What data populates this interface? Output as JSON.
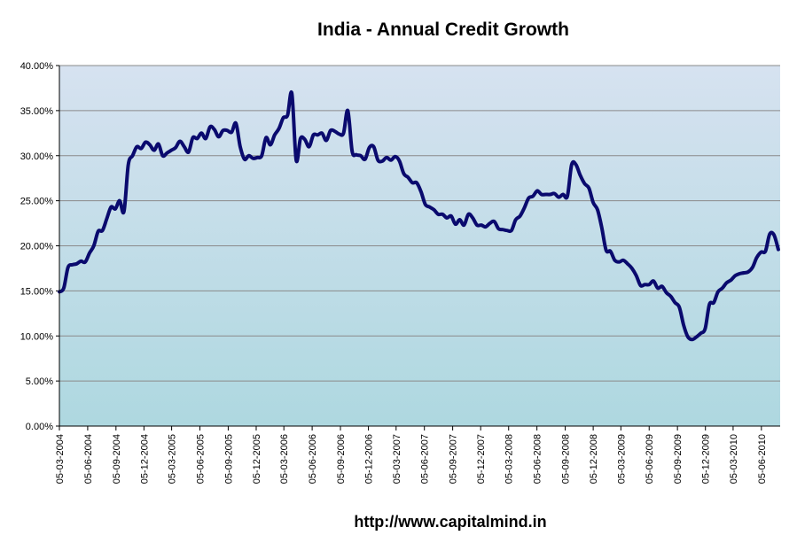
{
  "chart_data": {
    "type": "line",
    "title": "India - Annual Credit Growth",
    "source_caption": "http://www.capitalmind.in",
    "xlabel": "",
    "ylabel": "",
    "ylim": [
      0,
      40
    ],
    "grid": true,
    "legend": "none",
    "colors": {
      "line": "#0a0a6e",
      "plot_bg_top": "#d6e2f0",
      "plot_bg_bottom": "#aed8e0",
      "gridline": "#8a8a8a",
      "axis": "#000000"
    },
    "y_ticks": [
      "0.00%",
      "5.00%",
      "10.00%",
      "15.00%",
      "20.00%",
      "25.00%",
      "30.00%",
      "35.00%",
      "40.00%"
    ],
    "x_ticks": [
      "05-03-2004",
      "05-06-2004",
      "05-09-2004",
      "05-12-2004",
      "05-03-2005",
      "05-06-2005",
      "05-09-2005",
      "05-12-2005",
      "05-03-2006",
      "05-06-2006",
      "05-09-2006",
      "05-12-2006",
      "05-03-2007",
      "05-06-2007",
      "05-09-2007",
      "05-12-2007",
      "05-03-2008",
      "05-06-2008",
      "05-09-2008",
      "05-12-2008",
      "05-03-2009",
      "05-06-2009",
      "05-09-2009",
      "05-12-2009",
      "05-03-2010",
      "05-06-2010"
    ],
    "series": [
      {
        "x": [
          "2004-03-05",
          "2004-03-19",
          "2004-04-02",
          "2004-04-16",
          "2004-04-30",
          "2004-05-14",
          "2004-05-28",
          "2004-06-11",
          "2004-06-25",
          "2004-07-09",
          "2004-07-23",
          "2004-08-06",
          "2004-08-20",
          "2004-09-03",
          "2004-09-17",
          "2004-10-01",
          "2004-10-15",
          "2004-10-29",
          "2004-11-12",
          "2004-11-26",
          "2004-12-10",
          "2004-12-24",
          "2005-01-07",
          "2005-01-21",
          "2005-02-04",
          "2005-02-18",
          "2005-03-04",
          "2005-03-18",
          "2005-04-01",
          "2005-04-15",
          "2005-04-29",
          "2005-05-13",
          "2005-05-27",
          "2005-06-10",
          "2005-06-24",
          "2005-07-08",
          "2005-07-22",
          "2005-08-05",
          "2005-08-19",
          "2005-09-02",
          "2005-09-16",
          "2005-09-30",
          "2005-10-14",
          "2005-10-28",
          "2005-11-11",
          "2005-11-25",
          "2005-12-09",
          "2005-12-23",
          "2006-01-06",
          "2006-01-20",
          "2006-02-03",
          "2006-02-17",
          "2006-03-03",
          "2006-03-17",
          "2006-03-31",
          "2006-04-14",
          "2006-04-28",
          "2006-05-12",
          "2006-05-26",
          "2006-06-09",
          "2006-06-23",
          "2006-07-07",
          "2006-07-21",
          "2006-08-04",
          "2006-08-18",
          "2006-09-01",
          "2006-09-15",
          "2006-09-29",
          "2006-10-13",
          "2006-10-27",
          "2006-11-10",
          "2006-11-24",
          "2006-12-08",
          "2006-12-22",
          "2007-01-05",
          "2007-01-19",
          "2007-02-02",
          "2007-02-16",
          "2007-03-02",
          "2007-03-16",
          "2007-03-30",
          "2007-04-13",
          "2007-04-27",
          "2007-05-11",
          "2007-05-25",
          "2007-06-08",
          "2007-06-22",
          "2007-07-06",
          "2007-07-20",
          "2007-08-03",
          "2007-08-17",
          "2007-08-31",
          "2007-09-14",
          "2007-09-28",
          "2007-10-12",
          "2007-10-26",
          "2007-11-09",
          "2007-11-23",
          "2007-12-07",
          "2007-12-21",
          "2008-01-04",
          "2008-01-18",
          "2008-02-01",
          "2008-02-15",
          "2008-02-29",
          "2008-03-14",
          "2008-03-28",
          "2008-04-11",
          "2008-04-25",
          "2008-05-09",
          "2008-05-23",
          "2008-06-06",
          "2008-06-20",
          "2008-07-04",
          "2008-07-18",
          "2008-08-01",
          "2008-08-15",
          "2008-08-29",
          "2008-09-12",
          "2008-09-26",
          "2008-10-10",
          "2008-10-24",
          "2008-11-07",
          "2008-11-21",
          "2008-12-05",
          "2008-12-19",
          "2009-01-02",
          "2009-01-16",
          "2009-01-30",
          "2009-02-13",
          "2009-02-27",
          "2009-03-13",
          "2009-03-27",
          "2009-04-10",
          "2009-04-24",
          "2009-05-08",
          "2009-05-22",
          "2009-06-05",
          "2009-06-19",
          "2009-07-03",
          "2009-07-17",
          "2009-07-31",
          "2009-08-14",
          "2009-08-28",
          "2009-09-11",
          "2009-09-25",
          "2009-10-09",
          "2009-10-23",
          "2009-11-06",
          "2009-11-20",
          "2009-12-04",
          "2009-12-18",
          "2010-01-01",
          "2010-01-15",
          "2010-01-29",
          "2010-02-12",
          "2010-02-26",
          "2010-03-12",
          "2010-03-26",
          "2010-04-09",
          "2010-04-23",
          "2010-05-07",
          "2010-05-21",
          "2010-06-04",
          "2010-06-18",
          "2010-07-02",
          "2010-07-16",
          "2010-07-30"
        ],
        "values": [
          14.9,
          15.3,
          17.6,
          17.9,
          18.0,
          18.3,
          18.2,
          19.2,
          20.0,
          21.6,
          21.7,
          23.0,
          24.3,
          24.1,
          25.0,
          23.8,
          29.0,
          30.0,
          31.0,
          30.8,
          31.5,
          31.2,
          30.6,
          31.3,
          30.0,
          30.3,
          30.6,
          30.9,
          31.6,
          31.0,
          30.4,
          32.0,
          31.9,
          32.5,
          31.9,
          33.2,
          32.9,
          32.1,
          32.8,
          32.8,
          32.6,
          33.6,
          31.0,
          29.6,
          30.0,
          29.7,
          29.8,
          30.0,
          32.0,
          31.2,
          32.3,
          33.0,
          34.2,
          34.5,
          36.9,
          29.5,
          31.9,
          31.8,
          31.0,
          32.3,
          32.3,
          32.5,
          31.7,
          32.8,
          32.7,
          32.4,
          32.5,
          35.0,
          30.5,
          30.1,
          30.0,
          29.6,
          30.9,
          31.0,
          29.5,
          29.4,
          29.8,
          29.5,
          29.9,
          29.4,
          28.0,
          27.6,
          27.0,
          27.0,
          26.0,
          24.6,
          24.3,
          24.0,
          23.5,
          23.5,
          23.1,
          23.3,
          22.4,
          22.9,
          22.3,
          23.5,
          23.1,
          22.3,
          22.3,
          22.1,
          22.5,
          22.7,
          21.9,
          21.8,
          21.7,
          21.7,
          22.9,
          23.3,
          24.2,
          25.3,
          25.5,
          26.1,
          25.7,
          25.7,
          25.7,
          25.8,
          25.4,
          25.7,
          25.5,
          29.0,
          29.0,
          27.8,
          26.9,
          26.4,
          24.8,
          24.0,
          22.0,
          19.5,
          19.4,
          18.4,
          18.2,
          18.4,
          18.0,
          17.5,
          16.7,
          15.6,
          15.7,
          15.7,
          16.1,
          15.3,
          15.5,
          14.8,
          14.4,
          13.7,
          13.2,
          11.2,
          9.9,
          9.6,
          9.9,
          10.3,
          10.8,
          13.5,
          13.7,
          14.9,
          15.3,
          15.9,
          16.2,
          16.7,
          16.9,
          17.0,
          17.1,
          17.6,
          18.7,
          19.3,
          19.4,
          21.3,
          21.2,
          19.6
        ]
      }
    ]
  }
}
